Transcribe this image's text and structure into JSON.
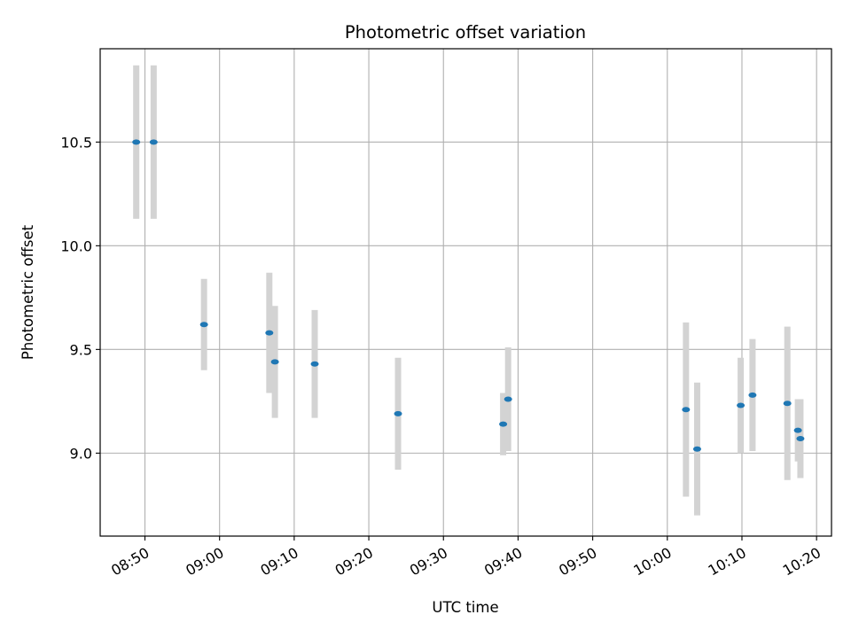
{
  "chart_data": {
    "type": "scatter",
    "title": "Photometric offset variation",
    "xlabel": "UTC time",
    "ylabel": "Photometric offset",
    "x_axis": {
      "range": [
        "08:44",
        "10:22"
      ],
      "ticks": [
        "08:50",
        "09:00",
        "09:10",
        "09:20",
        "09:30",
        "09:40",
        "09:50",
        "10:00",
        "10:10",
        "10:20"
      ]
    },
    "y_axis": {
      "range": [
        8.6,
        10.95
      ],
      "ticks": [
        9.0,
        9.5,
        10.0,
        10.5
      ],
      "tick_labels": [
        "9.0",
        "9.5",
        "10.0",
        "10.5"
      ]
    },
    "grid": true,
    "point_color": "#1f77b4",
    "errorbar_color": "#d3d3d3",
    "points": [
      {
        "x": "08:48:50",
        "y": 10.5,
        "err": 0.37
      },
      {
        "x": "08:51:10",
        "y": 10.5,
        "err": 0.37
      },
      {
        "x": "08:57:55",
        "y": 9.62,
        "err": 0.22
      },
      {
        "x": "09:06:40",
        "y": 9.58,
        "err": 0.29
      },
      {
        "x": "09:07:25",
        "y": 9.44,
        "err": 0.27
      },
      {
        "x": "09:12:45",
        "y": 9.43,
        "err": 0.26
      },
      {
        "x": "09:23:55",
        "y": 9.19,
        "err": 0.27
      },
      {
        "x": "09:38:00",
        "y": 9.14,
        "err": 0.15
      },
      {
        "x": "09:38:40",
        "y": 9.26,
        "err": 0.25
      },
      {
        "x": "10:02:30",
        "y": 9.21,
        "err": 0.42
      },
      {
        "x": "10:04:00",
        "y": 9.02,
        "err": 0.32
      },
      {
        "x": "10:09:50",
        "y": 9.23,
        "err": 0.23
      },
      {
        "x": "10:11:25",
        "y": 9.28,
        "err": 0.27
      },
      {
        "x": "10:16:05",
        "y": 9.24,
        "err": 0.37
      },
      {
        "x": "10:17:30",
        "y": 9.11,
        "err": 0.15
      },
      {
        "x": "10:17:50",
        "y": 9.07,
        "err": 0.19
      }
    ]
  }
}
